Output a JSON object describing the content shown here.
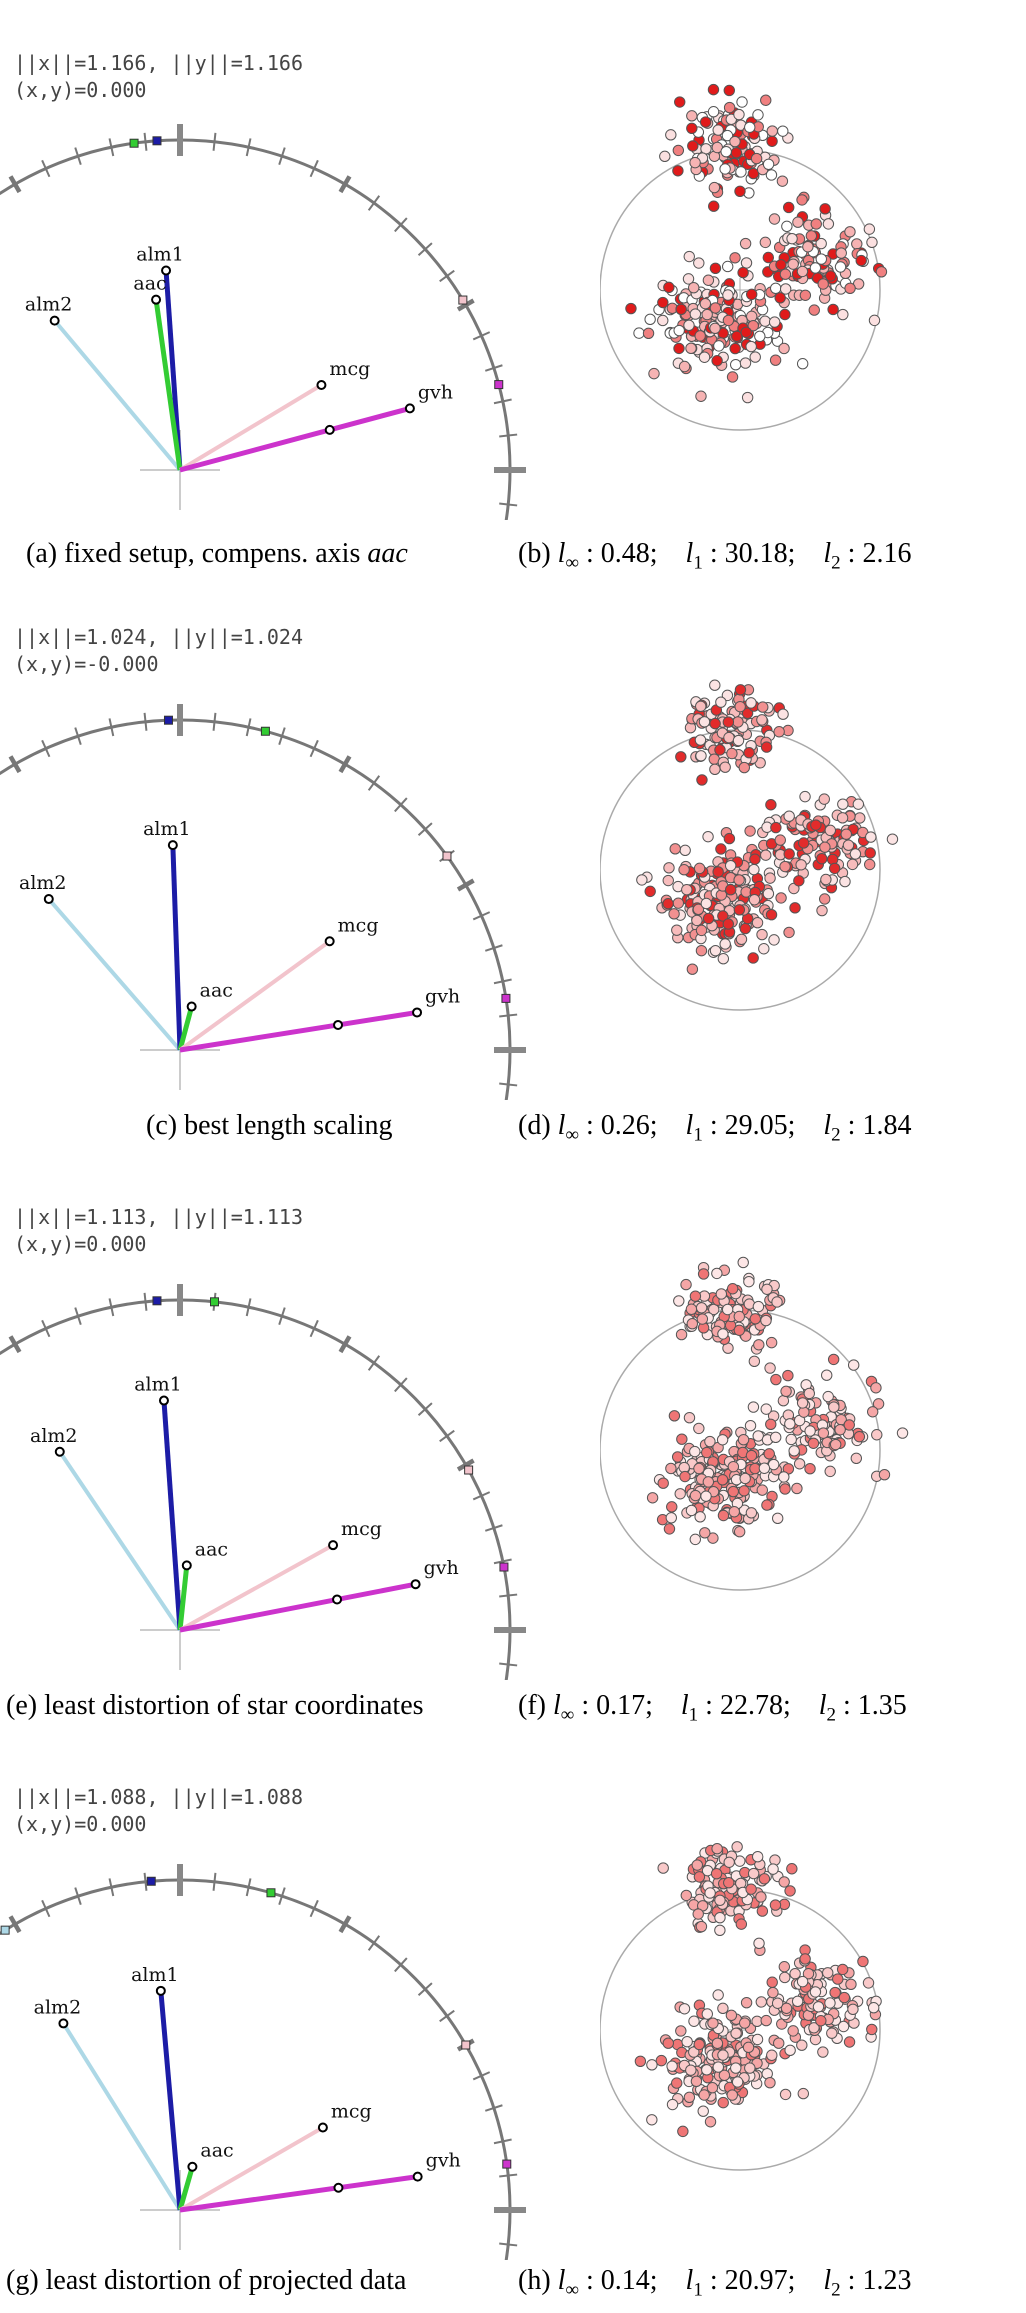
{
  "panels": [
    {
      "norm_text": "||x||=1.166, ||y||=1.166",
      "dot_text": "(x,y)=0.000",
      "caption_left_prefix": "(a) fixed setup, compens. axis",
      "caption_left_italic": "aac",
      "caption_right_prefix": "(b)",
      "linf": "0.48",
      "l1": "30.18",
      "l2": "2.16",
      "axes": [
        {
          "label": "alm2",
          "color": "#add8e6",
          "angle": 130,
          "len": 195,
          "dot_len": 195,
          "width": 4
        },
        {
          "label": "alm1",
          "color": "#1c1ca6",
          "angle": 94,
          "len": 200,
          "dot_len": 200,
          "width": 5
        },
        {
          "label": "aac",
          "color": "#33cc33",
          "angle": 98,
          "len": 172,
          "dot_len": 172,
          "width": 5
        },
        {
          "label": "mcg",
          "color": "#f2c4cc",
          "angle": 31,
          "len": 165,
          "dot_len": 165,
          "width": 4
        },
        {
          "label": "gvh",
          "color": "#cc33cc",
          "angle": 15,
          "len": 238,
          "dot_len": 155,
          "width": 5
        }
      ]
    },
    {
      "norm_text": "||x||=1.024, ||y||=1.024",
      "dot_text": "(x,y)=-0.000",
      "caption_left_prefix": "(c) best length scaling",
      "caption_left_italic": "",
      "caption_right_prefix": "(d)",
      "linf": "0.26",
      "l1": "29.05",
      "l2": "1.84",
      "axes": [
        {
          "label": "alm2",
          "color": "#add8e6",
          "angle": 131,
          "len": 200,
          "dot_len": 200,
          "width": 4
        },
        {
          "label": "alm1",
          "color": "#1c1ca6",
          "angle": 92,
          "len": 205,
          "dot_len": 205,
          "width": 5
        },
        {
          "label": "aac",
          "color": "#33cc33",
          "angle": 75,
          "len": 45,
          "dot_len": 45,
          "width": 5
        },
        {
          "label": "mcg",
          "color": "#f2c4cc",
          "angle": 36,
          "len": 185,
          "dot_len": 185,
          "width": 4
        },
        {
          "label": "gvh",
          "color": "#cc33cc",
          "angle": 9,
          "len": 240,
          "dot_len": 160,
          "width": 5
        }
      ]
    },
    {
      "norm_text": "||x||=1.113, ||y||=1.113",
      "dot_text": "(x,y)=0.000",
      "caption_left_prefix": "(e) least distortion of star coordinates",
      "caption_left_italic": "",
      "caption_right_prefix": "(f)",
      "linf": "0.17",
      "l1": "22.78",
      "l2": "1.35",
      "axes": [
        {
          "label": "alm2",
          "color": "#add8e6",
          "angle": 124,
          "len": 215,
          "dot_len": 215,
          "width": 4
        },
        {
          "label": "alm1",
          "color": "#1c1ca6",
          "angle": 94,
          "len": 230,
          "dot_len": 230,
          "width": 5
        },
        {
          "label": "aac",
          "color": "#33cc33",
          "angle": 84,
          "len": 65,
          "dot_len": 65,
          "width": 5
        },
        {
          "label": "mcg",
          "color": "#f2c4cc",
          "angle": 29,
          "len": 175,
          "dot_len": 175,
          "width": 4
        },
        {
          "label": "gvh",
          "color": "#cc33cc",
          "angle": 11,
          "len": 240,
          "dot_len": 160,
          "width": 5
        }
      ]
    },
    {
      "norm_text": "||x||=1.088, ||y||=1.088",
      "dot_text": "(x,y)=0.000",
      "caption_left_prefix": "(g) least distortion of projected data",
      "caption_left_italic": "",
      "caption_right_prefix": "(h)",
      "linf": "0.14",
      "l1": "20.97",
      "l2": "1.23",
      "axes": [
        {
          "label": "alm2",
          "color": "#add8e6",
          "angle": 122,
          "len": 220,
          "dot_len": 220,
          "width": 4
        },
        {
          "label": "alm1",
          "color": "#1c1ca6",
          "angle": 95,
          "len": 220,
          "dot_len": 220,
          "width": 5
        },
        {
          "label": "aac",
          "color": "#33cc33",
          "angle": 74,
          "len": 45,
          "dot_len": 45,
          "width": 5
        },
        {
          "label": "mcg",
          "color": "#f2c4cc",
          "angle": 30,
          "len": 165,
          "dot_len": 165,
          "width": 4
        },
        {
          "label": "gvh",
          "color": "#cc33cc",
          "angle": 8,
          "len": 240,
          "dot_len": 160,
          "width": 5
        }
      ]
    }
  ]
}
